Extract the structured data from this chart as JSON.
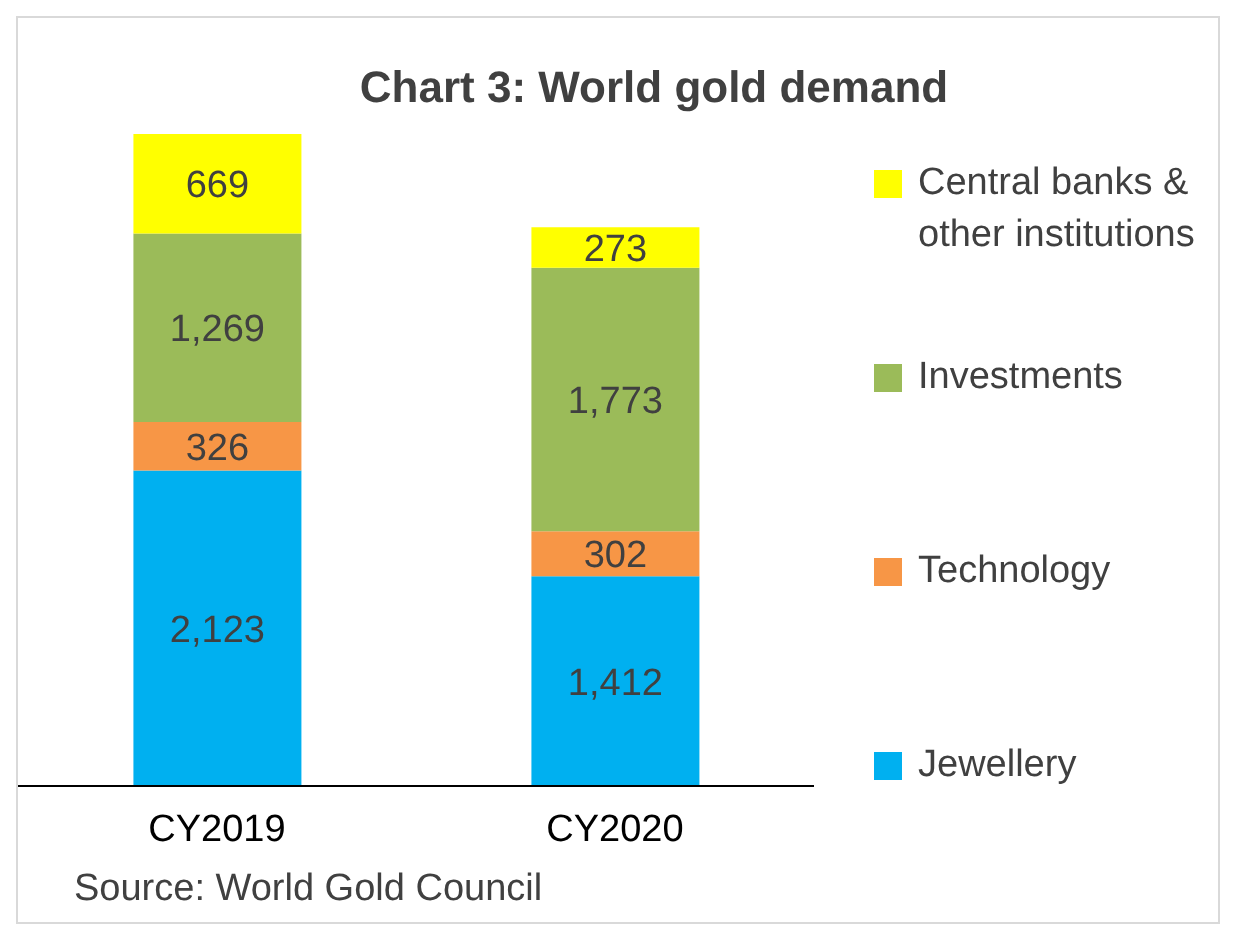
{
  "chart_data": {
    "type": "bar",
    "title": "Chart 3: World gold demand",
    "categories": [
      "CY2019",
      "CY2020"
    ],
    "stacked": true,
    "legend": "right",
    "grid": false,
    "series": [
      {
        "name": "Jewellery",
        "color": "#00b0f0",
        "values": [
          2123,
          1412
        ],
        "value_labels": [
          "2,123",
          "1,412"
        ]
      },
      {
        "name": "Technology",
        "color": "#f79646",
        "values": [
          326,
          302
        ],
        "value_labels": [
          "326",
          "302"
        ]
      },
      {
        "name": "Investments",
        "color": "#9bbb59",
        "values": [
          1269,
          1773
        ],
        "value_labels": [
          "1,269",
          "1,773"
        ]
      },
      {
        "name": "Central banks & other institutions",
        "color": "#ffff00",
        "values": [
          669,
          273
        ],
        "value_labels": [
          "669",
          "273"
        ]
      }
    ],
    "annotations": [
      "Source: World Gold Council"
    ]
  }
}
